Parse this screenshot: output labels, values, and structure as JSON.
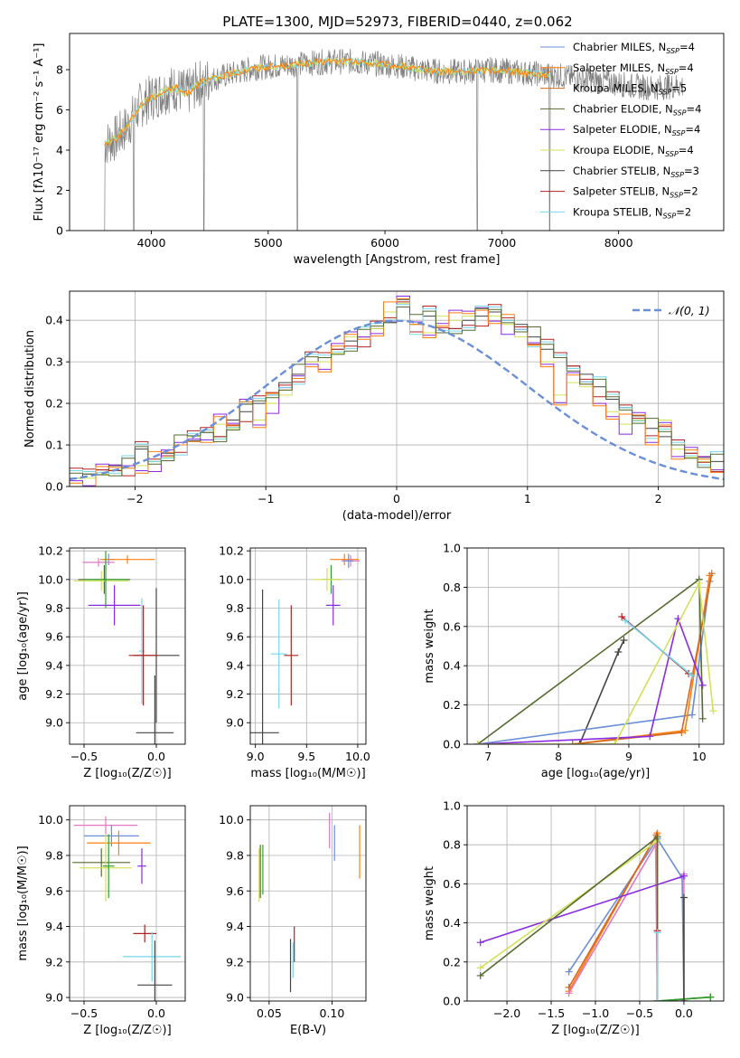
{
  "colors": {
    "Chabrier MILES": "#6a8fd8",
    "Salpeter MILES": "#ff7f0e",
    "Kroupa MILES": "#d2691e",
    "Chabrier ELODIE": "#556b2f",
    "Salpeter ELODIE": "#8a2be2",
    "Kroupa ELODIE": "#d4e157",
    "Chabrier STELIB": "#444444",
    "Salpeter STELIB": "#b22222",
    "Kroupa STELIB": "#76d7ea",
    "pink": "#e377c2",
    "green": "#2ca02c",
    "gray": "#808080"
  },
  "chart_data": [
    {
      "id": "spectrum",
      "type": "line",
      "title": "PLATE=1300, MJD=52973, FIBERID=0440, z=0.062",
      "xlabel": "wavelength [Angstrom, rest frame]",
      "ylabel": "Flux [f$_\\lambda$10$^{-17}$ erg cm$^{-2}$ s$^{-1}$ A$^{-1}$]",
      "ylabel_display": "Flux [fλ10⁻¹⁷ erg cm⁻² s⁻¹ A⁻¹]",
      "xlim": [
        3300,
        8900
      ],
      "ylim": [
        0,
        9.8
      ],
      "xticks": [
        4000,
        5000,
        6000,
        7000,
        8000
      ],
      "yticks": [
        0,
        2,
        4,
        6,
        8
      ],
      "grid": false,
      "legend_position": "right",
      "legend": [
        {
          "label": "Chabrier MILES, N",
          "sub": "SSP",
          "tail": "=4",
          "color": "#6a8fd8"
        },
        {
          "label": "Salpeter MILES, N",
          "sub": "SSP",
          "tail": "=4",
          "color": "#ff7f0e"
        },
        {
          "label": "Kroupa MILES, N",
          "sub": "SSP",
          "tail": "=5",
          "color": "#d2691e"
        },
        {
          "label": "Chabrier ELODIE, N",
          "sub": "SSP",
          "tail": "=4",
          "color": "#556b2f"
        },
        {
          "label": "Salpeter ELODIE, N",
          "sub": "SSP",
          "tail": "=4",
          "color": "#8a2be2"
        },
        {
          "label": "Kroupa ELODIE, N",
          "sub": "SSP",
          "tail": "=4",
          "color": "#d4e157"
        },
        {
          "label": "Chabrier STELIB, N",
          "sub": "SSP",
          "tail": "=3",
          "color": "#444444"
        },
        {
          "label": "Salpeter STELIB, N",
          "sub": "SSP",
          "tail": "=2",
          "color": "#b22222"
        },
        {
          "label": "Kroupa STELIB, N",
          "sub": "SSP",
          "tail": "=2",
          "color": "#76d7ea"
        }
      ],
      "continuum_x": [
        3600,
        3700,
        3800,
        3900,
        4000,
        4100,
        4200,
        4300,
        4400,
        4500,
        4700,
        4900,
        5100,
        5300,
        5500,
        5700,
        5900,
        6100,
        6300,
        6500,
        6700,
        6900,
        7100,
        7300,
        7500,
        7700,
        7900,
        8100,
        8300,
        8500
      ],
      "continuum_y": [
        4.3,
        4.6,
        5.2,
        6.2,
        6.6,
        6.9,
        7.1,
        6.8,
        7.3,
        7.5,
        7.8,
        8.1,
        8.2,
        8.3,
        8.4,
        8.4,
        8.3,
        8.2,
        8.0,
        7.9,
        7.9,
        8.0,
        7.9,
        7.8,
        7.7,
        7.5,
        7.4,
        7.2,
        7.1,
        7.2
      ],
      "data_range": [
        3600,
        8550
      ],
      "spikes_x": [
        3600,
        3850,
        4450,
        5250,
        6790,
        7410
      ],
      "model_range": [
        3600,
        7420
      ]
    },
    {
      "id": "residuals",
      "type": "histogram",
      "xlabel": "(data-model)/error",
      "ylabel": "Normed distribution",
      "xlim": [
        -2.5,
        2.5
      ],
      "ylim": [
        0,
        0.47
      ],
      "xticks": [
        -2,
        -1,
        0,
        1,
        2
      ],
      "yticks": [
        0.0,
        0.1,
        0.2,
        0.3,
        0.4
      ],
      "grid": true,
      "legend_position": "top-right",
      "legend_label": "𝒩(0, 1)",
      "bin_width": 0.1,
      "series": [
        {
          "name": "Chabrier STELIB",
          "values": [
            0.02,
            0.03,
            0.04,
            0.05,
            0.05,
            0.09,
            0.06,
            0.08,
            0.1,
            0.11,
            0.13,
            0.12,
            0.16,
            0.18,
            0.2,
            0.22,
            0.25,
            0.27,
            0.3,
            0.31,
            0.33,
            0.35,
            0.36,
            0.38,
            0.4,
            0.45,
            0.39,
            0.41,
            0.37,
            0.38,
            0.4,
            0.41,
            0.42,
            0.4,
            0.39,
            0.36,
            0.33,
            0.31,
            0.29,
            0.27,
            0.24,
            0.21,
            0.19,
            0.17,
            0.14,
            0.12,
            0.1,
            0.08,
            0.07,
            0.06
          ]
        },
        {
          "name": "Kroupa ELODIE",
          "values": [
            0.02,
            0.02,
            0.03,
            0.04,
            0.05,
            0.05,
            0.06,
            0.07,
            0.1,
            0.12,
            0.13,
            0.15,
            0.14,
            0.21,
            0.16,
            0.2,
            0.22,
            0.26,
            0.3,
            0.3,
            0.32,
            0.36,
            0.36,
            0.38,
            0.42,
            0.44,
            0.39,
            0.37,
            0.41,
            0.4,
            0.41,
            0.43,
            0.41,
            0.39,
            0.36,
            0.34,
            0.3,
            0.22,
            0.25,
            0.24,
            0.2,
            0.18,
            0.15,
            0.16,
            0.1,
            0.16,
            0.09,
            0.07,
            0.06,
            0.04
          ]
        }
      ]
    },
    {
      "id": "age_vs_Z",
      "type": "errorbar",
      "xlabel": "Z [log$_{10}$($Z/Z_\\odot$)]",
      "xlabel_display": "Z [log₁₀(Z/Z☉)]",
      "ylabel": "age  [log$_{10}$($age/yr$)]",
      "ylabel_display": "age  [log₁₀(age/yr)]",
      "xlim": [
        -0.6,
        0.2
      ],
      "ylim": [
        8.85,
        10.22
      ],
      "xticks": [
        -0.5,
        0.0
      ],
      "yticks": [
        9.0,
        9.2,
        9.4,
        9.6,
        9.8,
        10.0,
        10.2
      ],
      "grid": true,
      "points": [
        {
          "x": -0.33,
          "y": 10.14,
          "xerr": 0.04,
          "yerr": 0.04,
          "color": "#6a8fd8"
        },
        {
          "x": -0.2,
          "y": 10.14,
          "xerr": 0.19,
          "yerr": 0.03,
          "color": "#ff7f0e"
        },
        {
          "x": -0.4,
          "y": 10.12,
          "xerr": 0.11,
          "yerr": 0.03,
          "color": "#e377c2"
        },
        {
          "x": -0.36,
          "y": 10.0,
          "xerr": 0.18,
          "yerr": 0.1,
          "color": "#556b2f"
        },
        {
          "x": -0.38,
          "y": 9.99,
          "xerr": 0.19,
          "yerr": 0.07,
          "color": "#d4e157"
        },
        {
          "x": -0.35,
          "y": 10.0,
          "xerr": 0.15,
          "yerr": 0.2,
          "color": "#2ca02c"
        },
        {
          "x": -0.29,
          "y": 9.82,
          "xerr": 0.18,
          "yerr": 0.14,
          "color": "#8a2be2"
        },
        {
          "x": -0.1,
          "y": 9.5,
          "xerr": 0.02,
          "yerr": 0.37,
          "color": "#76d7ea"
        },
        {
          "x": 0.0,
          "y": 9.47,
          "xerr": 0.16,
          "yerr": 0.47,
          "color": "#444444"
        },
        {
          "x": -0.09,
          "y": 9.47,
          "xerr": 0.1,
          "yerr": 0.35,
          "color": "#b22222"
        },
        {
          "x": -0.01,
          "y": 8.93,
          "xerr": 0.13,
          "yerr": 0.4,
          "color": "#444444"
        }
      ]
    },
    {
      "id": "age_vs_mass",
      "type": "errorbar",
      "xlabel": "mass [log$_{10}$($M/M_\\odot$)]",
      "xlabel_display": "mass [log₁₀(M/M☉)]",
      "xlim": [
        8.95,
        10.08
      ],
      "ylim": [
        8.85,
        10.22
      ],
      "xticks": [
        9.0,
        9.5,
        10.0
      ],
      "yticks": [
        9.0,
        9.2,
        9.4,
        9.6,
        9.8,
        10.0,
        10.2
      ],
      "grid": true,
      "points": [
        {
          "x": 9.87,
          "y": 10.14,
          "xerr": 0.14,
          "yerr": 0.04,
          "color": "#ff7f0e"
        },
        {
          "x": 9.93,
          "y": 10.13,
          "xerr": 0.09,
          "yerr": 0.04,
          "color": "#e377c2"
        },
        {
          "x": 9.91,
          "y": 10.13,
          "xerr": 0.05,
          "yerr": 0.05,
          "color": "#6a8fd8"
        },
        {
          "x": 9.74,
          "y": 10.0,
          "xerr": 0.09,
          "yerr": 0.1,
          "color": "#2ca02c"
        },
        {
          "x": 9.7,
          "y": 10.0,
          "xerr": 0.14,
          "yerr": 0.08,
          "color": "#d4e157"
        },
        {
          "x": 9.76,
          "y": 9.82,
          "xerr": 0.07,
          "yerr": 0.14,
          "color": "#8a2be2"
        },
        {
          "x": 9.23,
          "y": 9.48,
          "xerr": 0.08,
          "yerr": 0.38,
          "color": "#76d7ea"
        },
        {
          "x": 9.35,
          "y": 9.47,
          "xerr": 0.07,
          "yerr": 0.35,
          "color": "#b22222"
        },
        {
          "x": 9.07,
          "y": 8.93,
          "xerr": 0.16,
          "yerr": 1.0,
          "color": "#444444"
        }
      ]
    },
    {
      "id": "massweight_vs_age",
      "type": "line",
      "xlabel": "age  [log$_{10}$($age/yr$)]",
      "xlabel_display": "age  [log₁₀(age/yr)]",
      "ylabel": "mass weight",
      "xlim": [
        6.7,
        10.35
      ],
      "ylim": [
        0,
        1.0
      ],
      "xticks": [
        7,
        8,
        9,
        10
      ],
      "yticks": [
        0.0,
        0.2,
        0.4,
        0.6,
        0.8,
        1.0
      ],
      "grid": true,
      "series": [
        {
          "name": "Chabrier STELIB",
          "color": "#444444",
          "x": [
            8.3,
            8.85,
            8.93
          ],
          "y": [
            0.0,
            0.47,
            0.53
          ]
        },
        {
          "name": "Chabrier MILES",
          "color": "#6a8fd8",
          "x": [
            6.85,
            9.9,
            10.15
          ],
          "y": [
            0.0,
            0.15,
            0.83
          ]
        },
        {
          "name": "Salpeter MILES",
          "color": "#ff7f0e",
          "x": [
            8.2,
            9.8,
            10.15
          ],
          "y": [
            0.0,
            0.07,
            0.86
          ]
        },
        {
          "name": "Kroupa MILES",
          "color": "#d2691e",
          "x": [
            8.2,
            9.75,
            10.18
          ],
          "y": [
            0.0,
            0.06,
            0.87
          ]
        },
        {
          "name": "Chabrier ELODIE",
          "color": "#556b2f",
          "x": [
            6.85,
            10.0,
            10.05
          ],
          "y": [
            0.0,
            0.84,
            0.13
          ]
        },
        {
          "name": "Salpeter ELODIE",
          "color": "#8a2be2",
          "x": [
            6.85,
            9.3,
            9.7,
            10.05
          ],
          "y": [
            0.0,
            0.04,
            0.64,
            0.3
          ]
        },
        {
          "name": "Kroupa ELODIE",
          "color": "#d4e157",
          "x": [
            6.85,
            8.8,
            10.0,
            10.2
          ],
          "y": [
            0.0,
            0.0,
            0.82,
            0.17
          ]
        },
        {
          "name": "Salpeter STELIB",
          "color": "#b22222",
          "x": [
            8.9,
            9.85
          ],
          "y": [
            0.65,
            0.36
          ]
        },
        {
          "name": "Kroupa STELIB",
          "color": "#76d7ea",
          "x": [
            8.95,
            9.9
          ],
          "y": [
            0.63,
            0.35
          ]
        }
      ]
    },
    {
      "id": "mass_vs_Z",
      "type": "errorbar",
      "xlabel": "Z [log$_{10}$($Z/Z_\\odot$)]",
      "xlabel_display": "Z [log₁₀(Z/Z☉)]",
      "ylabel": "mass [log$_{10}$($M/M_\\odot$)]",
      "ylabel_display": "mass [log₁₀(M/M☉)]",
      "xlim": [
        -0.6,
        0.2
      ],
      "ylim": [
        8.98,
        10.08
      ],
      "xticks": [
        -0.5,
        0.0
      ],
      "yticks": [
        9.0,
        9.2,
        9.4,
        9.6,
        9.8,
        10.0
      ],
      "grid": true,
      "points": [
        {
          "x": -0.35,
          "y": 9.97,
          "xerr": 0.22,
          "yerr": 0.05,
          "color": "#e377c2"
        },
        {
          "x": -0.31,
          "y": 9.91,
          "xerr": 0.19,
          "yerr": 0.06,
          "color": "#6a8fd8"
        },
        {
          "x": -0.26,
          "y": 9.87,
          "xerr": 0.22,
          "yerr": 0.07,
          "color": "#ff7f0e"
        },
        {
          "x": -0.38,
          "y": 9.76,
          "xerr": 0.2,
          "yerr": 0.08,
          "color": "#556b2f"
        },
        {
          "x": -0.35,
          "y": 9.73,
          "xerr": 0.18,
          "yerr": 0.19,
          "color": "#d4e157"
        },
        {
          "x": -0.33,
          "y": 9.74,
          "xerr": 0.04,
          "yerr": 0.18,
          "color": "#2ca02c"
        },
        {
          "x": -0.1,
          "y": 9.74,
          "xerr": 0.03,
          "yerr": 0.1,
          "color": "#8a2be2"
        },
        {
          "x": -0.08,
          "y": 9.36,
          "xerr": 0.08,
          "yerr": 0.05,
          "color": "#b22222"
        },
        {
          "x": -0.03,
          "y": 9.23,
          "xerr": 0.2,
          "yerr": 0.14,
          "color": "#76d7ea"
        },
        {
          "x": -0.01,
          "y": 9.07,
          "xerr": 0.12,
          "yerr": 0.25,
          "color": "#444444"
        }
      ]
    },
    {
      "id": "mass_vs_ebv",
      "type": "errorbar",
      "xlabel": "E(B-V)",
      "xlim": [
        0.035,
        0.127
      ],
      "ylim": [
        8.98,
        10.08
      ],
      "xticks": [
        0.05,
        0.1
      ],
      "xtick_labels": [
        "0.05",
        "0.10"
      ],
      "yticks": [
        9.0,
        9.2,
        9.4,
        9.6,
        9.8,
        10.0
      ],
      "grid": true,
      "points": [
        {
          "x": 0.098,
          "y": 9.94,
          "xerr": 0,
          "yerr": 0.1,
          "color": "#e377c2"
        },
        {
          "x": 0.102,
          "y": 9.87,
          "xerr": 0,
          "yerr": 0.1,
          "color": "#6a8fd8"
        },
        {
          "x": 0.122,
          "y": 9.82,
          "xerr": 0,
          "yerr": 0.15,
          "color": "#ff7f0e"
        },
        {
          "x": 0.043,
          "y": 9.71,
          "xerr": 0,
          "yerr": 0.15,
          "color": "#556b2f"
        },
        {
          "x": 0.042,
          "y": 9.69,
          "xerr": 0,
          "yerr": 0.15,
          "color": "#d4e157"
        },
        {
          "x": 0.045,
          "y": 9.72,
          "xerr": 0,
          "yerr": 0.14,
          "color": "#2ca02c"
        },
        {
          "x": 0.07,
          "y": 9.3,
          "xerr": 0,
          "yerr": 0.1,
          "color": "#b22222"
        },
        {
          "x": 0.069,
          "y": 9.21,
          "xerr": 0,
          "yerr": 0.1,
          "color": "#76d7ea"
        },
        {
          "x": 0.067,
          "y": 9.18,
          "xerr": 0,
          "yerr": 0.15,
          "color": "#444444"
        }
      ]
    },
    {
      "id": "massweight_vs_Z",
      "type": "line",
      "xlabel": "Z [log$_{10}$($Z/Z_\\odot$)]",
      "xlabel_display": "Z [log₁₀(Z/Z☉)]",
      "ylabel": "mass weight",
      "xlim": [
        -2.45,
        0.45
      ],
      "ylim": [
        0,
        1.0
      ],
      "xticks": [
        -2.0,
        -1.5,
        -1.0,
        -0.5,
        0.0
      ],
      "yticks": [
        0.0,
        0.2,
        0.4,
        0.6,
        0.8,
        1.0
      ],
      "grid": true,
      "series": [
        {
          "name": "Chabrier MILES",
          "color": "#6a8fd8",
          "x": [
            -1.3,
            -0.3,
            -0.02,
            0.0
          ],
          "y": [
            0.15,
            0.83,
            0.63,
            0.0
          ]
        },
        {
          "name": "Salpeter MILES",
          "color": "#ff7f0e",
          "x": [
            -1.3,
            -0.3,
            -0.3
          ],
          "y": [
            0.05,
            0.86,
            0.0
          ]
        },
        {
          "name": "Kroupa MILES",
          "color": "#d2691e",
          "x": [
            -1.3,
            -0.31,
            -0.3
          ],
          "y": [
            0.07,
            0.85,
            0.0
          ]
        },
        {
          "name": "pink",
          "color": "#e377c2",
          "x": [
            -1.3,
            -0.32,
            -0.3,
            0.0,
            0.0
          ],
          "y": [
            0.04,
            0.8,
            0.0,
            0.0,
            0.65
          ]
        },
        {
          "name": "Salpeter ELODIE",
          "color": "#8a2be2",
          "x": [
            -2.3,
            0.0
          ],
          "y": [
            0.3,
            0.64
          ]
        },
        {
          "name": "Kroupa ELODIE",
          "color": "#d4e157",
          "x": [
            -2.3,
            -0.3,
            -0.3,
            0.3
          ],
          "y": [
            0.17,
            0.82,
            0.0,
            0.02
          ]
        },
        {
          "name": "Chabrier ELODIE",
          "color": "#556b2f",
          "x": [
            -2.3,
            -0.3,
            -0.3,
            0.3
          ],
          "y": [
            0.13,
            0.84,
            0.0,
            0.02
          ]
        },
        {
          "name": "green",
          "color": "#2ca02c",
          "x": [
            -0.3,
            0.3
          ],
          "y": [
            0.0,
            0.02
          ]
        },
        {
          "name": "Chabrier STELIB",
          "color": "#444444",
          "x": [
            0.0,
            0.0
          ],
          "y": [
            0.0,
            0.53
          ]
        },
        {
          "name": "Salpeter STELIB",
          "color": "#b22222",
          "x": [
            -0.3,
            -0.3
          ],
          "y": [
            0.0,
            0.36
          ]
        },
        {
          "name": "Kroupa STELIB",
          "color": "#76d7ea",
          "x": [
            -0.3,
            -0.3
          ],
          "y": [
            0.0,
            0.35
          ]
        }
      ]
    }
  ]
}
